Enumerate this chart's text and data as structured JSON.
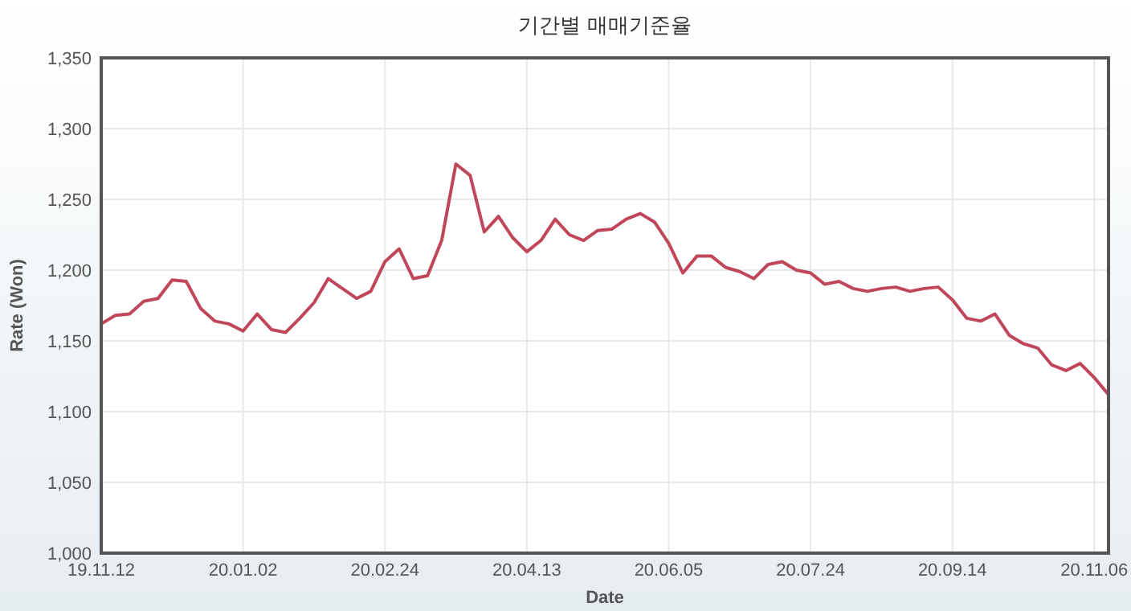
{
  "chart_data": {
    "type": "line",
    "title": "기간별 매매기준율",
    "xlabel": "Date",
    "ylabel": "Rate (Won)",
    "categories": [
      "19.11.12",
      null,
      null,
      null,
      null,
      null,
      null,
      null,
      null,
      null,
      "20.01.02",
      null,
      null,
      null,
      null,
      null,
      null,
      null,
      null,
      null,
      "20.02.24",
      null,
      null,
      null,
      null,
      null,
      null,
      null,
      null,
      null,
      "20.04.13",
      null,
      null,
      null,
      null,
      null,
      null,
      null,
      null,
      null,
      "20.06.05",
      null,
      null,
      null,
      null,
      null,
      null,
      null,
      null,
      null,
      "20.07.24",
      null,
      null,
      null,
      null,
      null,
      null,
      null,
      null,
      null,
      "20.09.14",
      null,
      null,
      null,
      null,
      null,
      null,
      null,
      null,
      null,
      "20.11.06",
      null
    ],
    "series": [
      {
        "color": "#c0465a",
        "values": [
          1162,
          1168,
          1169,
          1178,
          1180,
          1193,
          1192,
          1173,
          1164,
          1162,
          1157,
          1169,
          1158,
          1156,
          1166,
          1177,
          1194,
          1187,
          1180,
          1185,
          1206,
          1215,
          1194,
          1196,
          1221,
          1275,
          1267,
          1227,
          1238,
          1223,
          1213,
          1221,
          1236,
          1225,
          1221,
          1228,
          1229,
          1236,
          1240,
          1234,
          1219,
          1198,
          1210,
          1210,
          1202,
          1199,
          1194,
          1204,
          1206,
          1200,
          1198,
          1190,
          1192,
          1187,
          1185,
          1187,
          1188,
          1185,
          1187,
          1188,
          1179,
          1166,
          1164,
          1169,
          1154,
          1148,
          1145,
          1133,
          1129,
          1134,
          1124,
          1112
        ]
      }
    ],
    "ylim": [
      1000,
      1350
    ],
    "yticks": [
      {
        "value": 1000,
        "label": "1,000"
      },
      {
        "value": 1050,
        "label": "1,050"
      },
      {
        "value": 1100,
        "label": "1,100"
      },
      {
        "value": 1150,
        "label": "1,150"
      },
      {
        "value": 1200,
        "label": "1,200"
      },
      {
        "value": 1250,
        "label": "1,250"
      },
      {
        "value": 1300,
        "label": "1,300"
      },
      {
        "value": 1350,
        "label": "1,350"
      }
    ],
    "grid": true
  }
}
